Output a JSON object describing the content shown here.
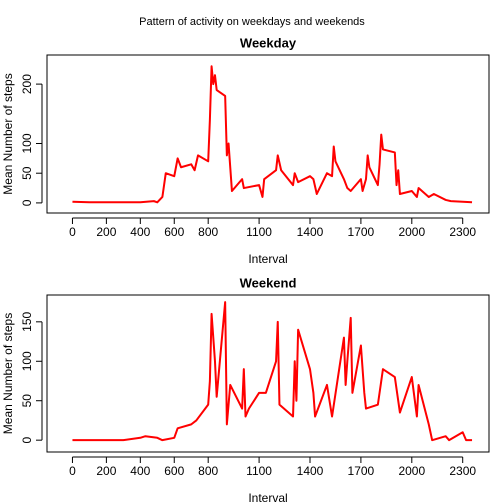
{
  "title": "Pattern of activity on weekdays and weekends",
  "chart_data": [
    {
      "type": "line",
      "title": "Weekday",
      "x_label": "Interval",
      "y_label": "Mean Number of steps",
      "x": [
        0,
        100,
        200,
        300,
        400,
        480,
        500,
        530,
        550,
        600,
        620,
        640,
        700,
        720,
        740,
        800,
        810,
        820,
        830,
        840,
        850,
        900,
        910,
        920,
        930,
        940,
        1000,
        1010,
        1100,
        1120,
        1130,
        1200,
        1210,
        1230,
        1300,
        1310,
        1330,
        1400,
        1420,
        1440,
        1500,
        1530,
        1540,
        1550,
        1600,
        1620,
        1640,
        1700,
        1710,
        1730,
        1740,
        1750,
        1800,
        1810,
        1820,
        1830,
        1900,
        1910,
        1920,
        1930,
        2000,
        2030,
        2040,
        2100,
        2130,
        2200,
        2230,
        2300,
        2355
      ],
      "series": [
        {
          "name": "Weekday",
          "color": "#ff0000",
          "values": [
            2,
            1,
            1,
            1,
            1,
            3,
            1,
            10,
            50,
            45,
            75,
            60,
            65,
            55,
            80,
            70,
            140,
            230,
            200,
            215,
            190,
            180,
            80,
            100,
            60,
            20,
            40,
            25,
            30,
            10,
            40,
            55,
            80,
            55,
            30,
            50,
            35,
            45,
            40,
            15,
            50,
            45,
            95,
            70,
            40,
            25,
            20,
            40,
            20,
            40,
            80,
            60,
            30,
            65,
            115,
            90,
            85,
            30,
            55,
            15,
            20,
            10,
            25,
            10,
            15,
            5,
            3,
            2,
            1
          ]
        }
      ],
      "xlim": [
        -150,
        2455
      ],
      "ylim": [
        -17,
        249
      ],
      "xticks": [
        0,
        200,
        400,
        600,
        800,
        1100,
        1400,
        1700,
        2000,
        2300
      ],
      "yticks": [
        0,
        50,
        100,
        200
      ]
    },
    {
      "type": "line",
      "title": "Weekend",
      "x_label": "Interval",
      "y_label": "Mean Number of steps",
      "x": [
        0,
        100,
        200,
        300,
        400,
        430,
        500,
        530,
        600,
        620,
        700,
        730,
        800,
        810,
        820,
        830,
        840,
        850,
        900,
        910,
        930,
        1000,
        1010,
        1020,
        1040,
        1100,
        1140,
        1200,
        1210,
        1220,
        1300,
        1310,
        1320,
        1330,
        1400,
        1420,
        1430,
        1500,
        1530,
        1600,
        1610,
        1620,
        1640,
        1650,
        1700,
        1720,
        1730,
        1800,
        1830,
        1900,
        1930,
        2000,
        2030,
        2040,
        2100,
        2120,
        2200,
        2220,
        2300,
        2320,
        2355
      ],
      "series": [
        {
          "name": "Weekend",
          "color": "#ff0000",
          "values": [
            0,
            0,
            0,
            0,
            3,
            5,
            3,
            0,
            3,
            15,
            20,
            25,
            45,
            75,
            160,
            130,
            100,
            55,
            175,
            20,
            70,
            40,
            90,
            30,
            40,
            60,
            60,
            100,
            150,
            45,
            30,
            100,
            50,
            140,
            90,
            60,
            30,
            70,
            30,
            130,
            70,
            100,
            155,
            60,
            120,
            60,
            40,
            45,
            90,
            80,
            35,
            80,
            30,
            70,
            20,
            0,
            5,
            0,
            10,
            0,
            0
          ]
        }
      ],
      "xlim": [
        -150,
        2455
      ],
      "ylim": [
        -15,
        184
      ],
      "xticks": [
        0,
        200,
        400,
        600,
        800,
        1100,
        1400,
        1700,
        2000,
        2300
      ],
      "yticks": [
        0,
        50,
        100,
        150
      ]
    }
  ]
}
